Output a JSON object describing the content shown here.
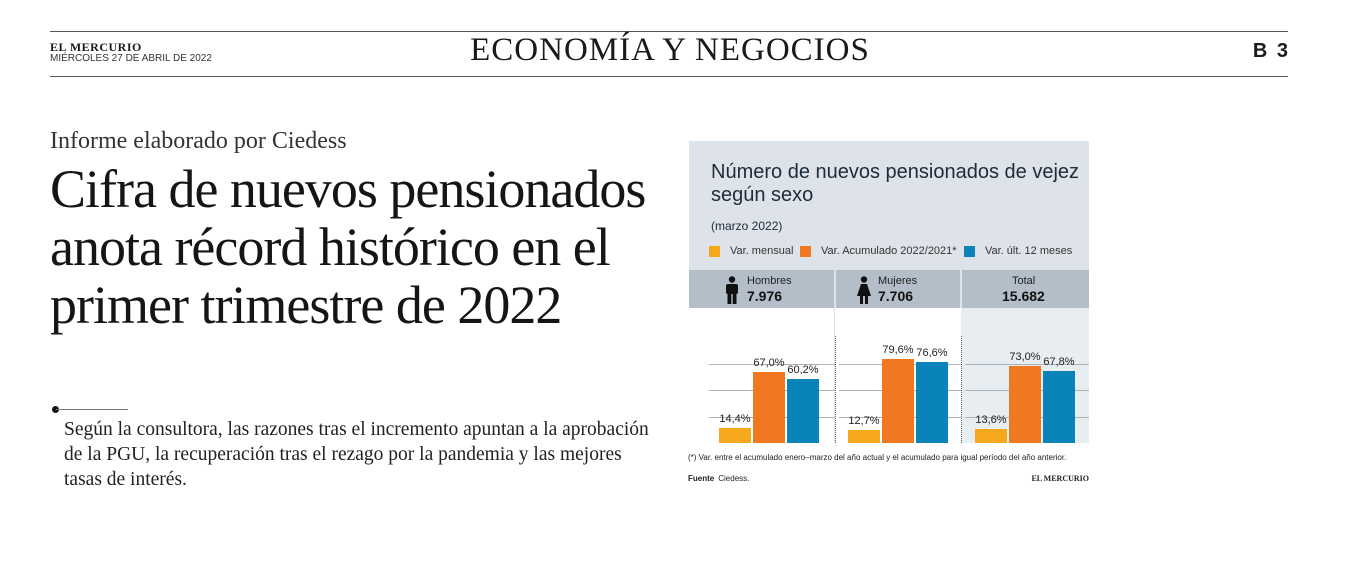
{
  "masthead": {
    "publication": "EL MERCURIO",
    "date": "MIÉRCOLES 27 DE ABRIL DE 2022",
    "section": "ECONOMÍA Y NEGOCIOS",
    "page": "B 3"
  },
  "article": {
    "kicker": "Informe elaborado por Ciedess",
    "headline": "Cifra de nuevos pensionados anota récord histórico en el primer trimestre de 2022",
    "lead": "Según la consultora, las razones tras el incremento apuntan a la aprobación de la PGU, la recuperación tras el rezago por la pandemia y las mejores tasas de interés."
  },
  "infographic": {
    "title": "Número de nuevos pensionados de vejez según sexo",
    "subtitle": "(marzo 2022)",
    "footnote": "(*) Var. entre el acumulado enero–marzo del año actual y el acumulado para igual período del año anterior.",
    "source_label": "Fuente",
    "source_value": "Ciedess.",
    "brand": "EL MERCURIO"
  },
  "chart_data": {
    "type": "bar",
    "title": "Número de nuevos pensionados de vejez según sexo",
    "subtitle": "(marzo 2022)",
    "groups": [
      {
        "label": "Hombres",
        "total": "7.976",
        "icon": "man-icon"
      },
      {
        "label": "Mujeres",
        "total": "7.706",
        "icon": "woman-icon"
      },
      {
        "label": "Total",
        "total": "15.682",
        "icon": ""
      }
    ],
    "series": [
      {
        "name": "Var. mensual",
        "color": "#f6a81c",
        "values": [
          14.4,
          12.7,
          13.6
        ],
        "labels": [
          "14,4%",
          "12,7%",
          "13,6%"
        ]
      },
      {
        "name": "Var. Acumulado 2022/2021*",
        "color": "#f07820",
        "values": [
          67.0,
          79.6,
          73.0
        ],
        "labels": [
          "67,0%",
          "79,6%",
          "73,0%"
        ]
      },
      {
        "name": "Var. últ. 12 meses",
        "color": "#0a84b8",
        "values": [
          60.2,
          76.6,
          67.8
        ],
        "labels": [
          "60,2%",
          "76,6%",
          "67,8%"
        ]
      }
    ],
    "ylim": [
      0,
      100
    ],
    "grid": true,
    "legend": "top"
  }
}
